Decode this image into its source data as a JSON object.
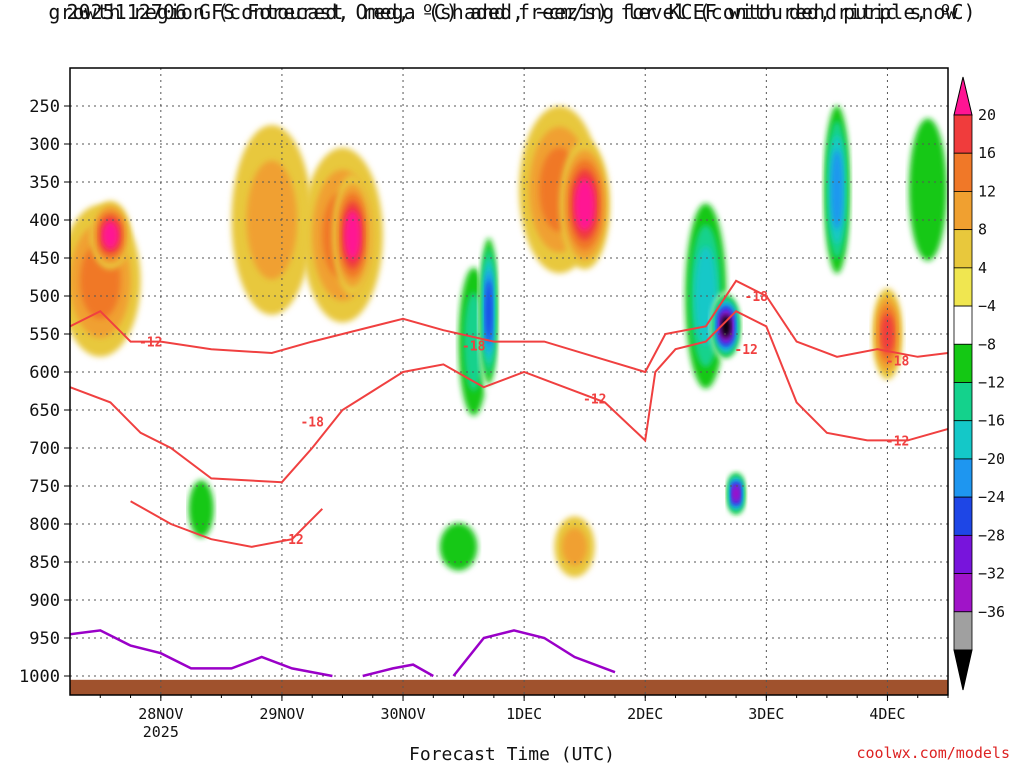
{
  "title_line1": "2025112706 GFS Forecast Omega (shaded, −cm/s) for KCEF with dendritic snow",
  "title_line2": "growth region (contoured, red, ºC) and freezing level (contoured, purple, ºC)",
  "credit": "coolwx.com/models",
  "colors": {
    "dendritic": "#f04040",
    "freezing": "#9a00c8",
    "ground": "#a0522d",
    "grid": "#555555"
  },
  "chart_data": {
    "type": "heatmap",
    "xlabel": "Forecast Time (UTC)",
    "ylabel": "",
    "y_ticks": [
      250,
      300,
      350,
      400,
      450,
      500,
      550,
      600,
      650,
      700,
      750,
      800,
      850,
      900,
      950,
      1000
    ],
    "y_range": [
      200,
      1025
    ],
    "x_range_hours": [
      6,
      180
    ],
    "x_ticks": [
      {
        "label": "28NOV",
        "sub": "2025",
        "hour": 24
      },
      {
        "label": "29NOV",
        "sub": "",
        "hour": 48
      },
      {
        "label": "30NOV",
        "sub": "",
        "hour": 72
      },
      {
        "label": "1DEC",
        "sub": "",
        "hour": 96
      },
      {
        "label": "2DEC",
        "sub": "",
        "hour": 120
      },
      {
        "label": "3DEC",
        "sub": "",
        "hour": 144
      },
      {
        "label": "4DEC",
        "sub": "",
        "hour": 168
      }
    ],
    "colorbar": {
      "labels": [
        "20",
        "16",
        "12",
        "8",
        "4",
        "−4",
        "−8",
        "−12",
        "−16",
        "−20",
        "−24",
        "−28",
        "−32",
        "−36"
      ],
      "colors": [
        "#ff1493",
        "#f03c3c",
        "#f07828",
        "#f0a030",
        "#e8c83c",
        "#f0e650",
        "#ffffff",
        "#14c814",
        "#14d28c",
        "#14c8c8",
        "#1e96f0",
        "#1e46e6",
        "#7814dc",
        "#a014c8",
        "#a0a0a0",
        "#000000"
      ]
    },
    "omega_blobs": [
      {
        "h": 12,
        "p": 480,
        "dh": 8,
        "dp": 200,
        "v": 12
      },
      {
        "h": 14,
        "p": 420,
        "dh": 4,
        "dp": 90,
        "v": 20
      },
      {
        "h": 46,
        "p": 400,
        "dh": 8,
        "dp": 250,
        "v": 8
      },
      {
        "h": 60,
        "p": 420,
        "dh": 8,
        "dp": 230,
        "v": 12
      },
      {
        "h": 62,
        "p": 420,
        "dh": 4,
        "dp": 160,
        "v": 20
      },
      {
        "h": 86,
        "p": 560,
        "dh": 4,
        "dp": 260,
        "v": -12
      },
      {
        "h": 89,
        "p": 520,
        "dh": 2,
        "dp": 220,
        "v": -24
      },
      {
        "h": 103,
        "p": 360,
        "dh": 8,
        "dp": 220,
        "v": 12
      },
      {
        "h": 108,
        "p": 380,
        "dh": 5,
        "dp": 170,
        "v": 20
      },
      {
        "h": 132,
        "p": 500,
        "dh": 5,
        "dp": 300,
        "v": -16
      },
      {
        "h": 136,
        "p": 540,
        "dh": 3,
        "dp": 90,
        "v": -36
      },
      {
        "h": 138,
        "p": 760,
        "dh": 2,
        "dp": 60,
        "v": -32
      },
      {
        "h": 158,
        "p": 360,
        "dh": 3,
        "dp": 260,
        "v": -20
      },
      {
        "h": 168,
        "p": 550,
        "dh": 3,
        "dp": 120,
        "v": 16
      },
      {
        "h": 176,
        "p": 360,
        "dh": 6,
        "dp": 300,
        "v": -8
      },
      {
        "h": 83,
        "p": 830,
        "dh": 6,
        "dp": 100,
        "v": -8
      },
      {
        "h": 32,
        "p": 780,
        "dh": 4,
        "dp": 120,
        "v": -8
      },
      {
        "h": 106,
        "p": 830,
        "dh": 4,
        "dp": 80,
        "v": 8
      }
    ],
    "dendritic_minus12": [
      [
        6,
        620
      ],
      [
        14,
        640
      ],
      [
        20,
        680
      ],
      [
        26,
        700
      ],
      [
        34,
        740
      ],
      [
        48,
        745
      ],
      [
        54,
        700
      ],
      [
        60,
        650
      ],
      [
        66,
        625
      ],
      [
        72,
        600
      ],
      [
        80,
        590
      ],
      [
        88,
        620
      ],
      [
        96,
        600
      ],
      [
        104,
        620
      ],
      [
        112,
        640
      ],
      [
        120,
        690
      ],
      [
        122,
        600
      ],
      [
        126,
        570
      ],
      [
        132,
        560
      ],
      [
        138,
        520
      ],
      [
        144,
        540
      ],
      [
        150,
        640
      ],
      [
        156,
        680
      ],
      [
        164,
        690
      ],
      [
        172,
        690
      ],
      [
        180,
        675
      ]
    ],
    "dendritic_minus18": [
      [
        6,
        540
      ],
      [
        12,
        520
      ],
      [
        18,
        560
      ],
      [
        24,
        560
      ],
      [
        34,
        570
      ],
      [
        46,
        575
      ],
      [
        54,
        560
      ],
      [
        66,
        540
      ],
      [
        72,
        530
      ],
      [
        80,
        545
      ],
      [
        90,
        560
      ],
      [
        100,
        560
      ],
      [
        110,
        580
      ],
      [
        120,
        600
      ],
      [
        124,
        550
      ],
      [
        132,
        540
      ],
      [
        138,
        480
      ],
      [
        144,
        500
      ],
      [
        150,
        560
      ],
      [
        158,
        580
      ],
      [
        166,
        570
      ],
      [
        174,
        580
      ],
      [
        180,
        575
      ]
    ],
    "dendritic_minus12_low": [
      [
        18,
        770
      ],
      [
        26,
        800
      ],
      [
        34,
        820
      ],
      [
        42,
        830
      ],
      [
        50,
        820
      ],
      [
        56,
        780
      ]
    ],
    "freezing_level": [
      [
        6,
        945
      ],
      [
        12,
        940
      ],
      [
        18,
        960
      ],
      [
        24,
        970
      ],
      [
        30,
        990
      ],
      [
        38,
        990
      ],
      [
        44,
        975
      ],
      [
        50,
        990
      ],
      [
        58,
        1000
      ]
    ],
    "freezing_level_2": [
      [
        64,
        1000
      ],
      [
        70,
        990
      ],
      [
        74,
        985
      ],
      [
        78,
        1000
      ]
    ],
    "freezing_level_3": [
      [
        82,
        1000
      ],
      [
        88,
        950
      ],
      [
        94,
        940
      ],
      [
        100,
        950
      ],
      [
        106,
        975
      ],
      [
        114,
        995
      ]
    ],
    "contour_labels": [
      {
        "text": "-12",
        "h": 22,
        "p": 560
      },
      {
        "text": "-18",
        "h": 54,
        "p": 665
      },
      {
        "text": "-12",
        "h": 50,
        "p": 820
      },
      {
        "text": "-18",
        "h": 86,
        "p": 565
      },
      {
        "text": "-12",
        "h": 110,
        "p": 635
      },
      {
        "text": "-18",
        "h": 142,
        "p": 500
      },
      {
        "text": "-12",
        "h": 140,
        "p": 570
      },
      {
        "text": "-18",
        "h": 170,
        "p": 585
      },
      {
        "text": "-12",
        "h": 170,
        "p": 690
      }
    ]
  }
}
